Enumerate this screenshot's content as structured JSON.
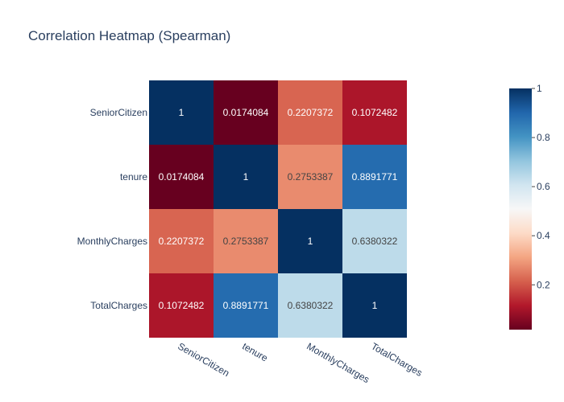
{
  "chart_data": {
    "type": "heatmap",
    "title": "Correlation Heatmap (Spearman)",
    "x_categories": [
      "SeniorCitizen",
      "tenure",
      "MonthlyCharges",
      "TotalCharges"
    ],
    "y_categories": [
      "SeniorCitizen",
      "tenure",
      "MonthlyCharges",
      "TotalCharges"
    ],
    "z": [
      [
        1,
        0.0174084,
        0.2207372,
        0.1072482
      ],
      [
        0.0174084,
        1,
        0.2753387,
        0.8891771
      ],
      [
        0.2207372,
        0.2753387,
        1,
        0.6380322
      ],
      [
        0.1072482,
        0.8891771,
        0.6380322,
        1
      ]
    ],
    "z_labels": [
      [
        "1",
        "0.0174084",
        "0.2207372",
        "0.1072482"
      ],
      [
        "0.0174084",
        "1",
        "0.2753387",
        "0.8891771"
      ],
      [
        "0.2207372",
        "0.2753387",
        "1",
        "0.6380322"
      ],
      [
        "0.1072482",
        "0.8891771",
        "0.6380322",
        "1"
      ]
    ],
    "zlim": [
      0.0174084,
      1
    ],
    "colorscale": "RdBu",
    "colorscale_stops": [
      "#67001f",
      "#b2182b",
      "#d6604d",
      "#f4a582",
      "#fddbc7",
      "#f7f7f7",
      "#d1e5f0",
      "#92c5de",
      "#4393c3",
      "#2166ac",
      "#053061"
    ],
    "colorbar_ticks": [
      0.2,
      0.4,
      0.6,
      0.8,
      1
    ],
    "colorbar_tick_labels": [
      "0.2",
      "0.4",
      "0.6",
      "0.8",
      "1"
    ],
    "x_tick_rotation_deg": 30,
    "legend_placement": "right (colorbar)",
    "grid": false
  }
}
